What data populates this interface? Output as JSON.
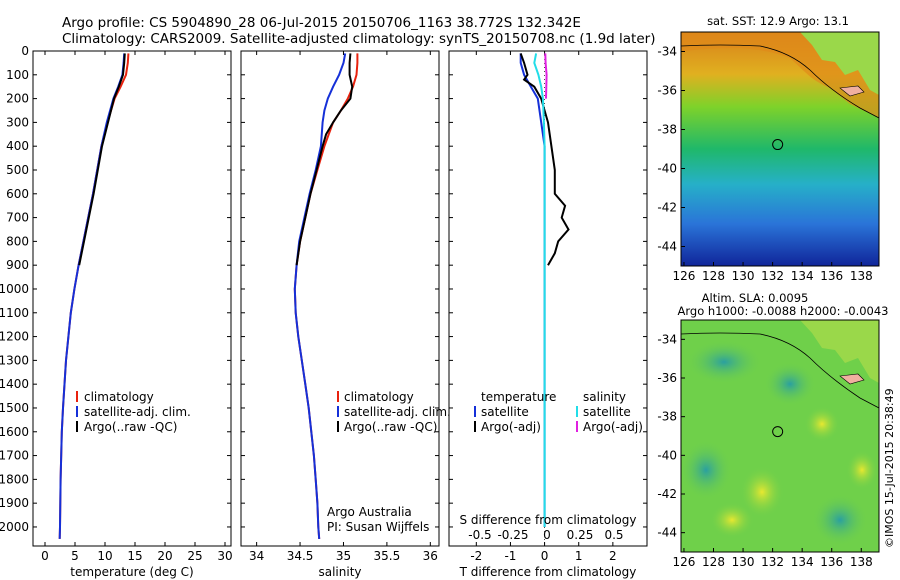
{
  "header": {
    "line1": "Argo profile: CS 5904890_28 06-Jul-2015 20150706_1163 38.772S 132.342E",
    "line2": "Climatology: CARS2009. Satellite-adjusted climatology: synTS_20150708.nc (1.9d later)"
  },
  "credits": {
    "org": "Argo Australia",
    "pi": "PI: Susan Wijffels",
    "stamp": "©IMOS 15-Jul-2015 20:38:49"
  },
  "colors": {
    "climatology": "#e8220e",
    "satellite": "#1530d8",
    "argo": "#000000",
    "sal_satellite": "#22dde8",
    "sal_argo": "#e020e0"
  },
  "legend_labels": {
    "climatology": "climatology",
    "satellite_adj": "satellite-adj. clim.",
    "argo_raw": "Argo(..raw -QC)",
    "temperature": "temperature",
    "salinity": "salinity",
    "satellite": "satellite",
    "argo_adj": "Argo(-adj)"
  },
  "map_labels": {
    "sst": "sat. SST: 12.9 Argo: 13.1",
    "sla": "Altim. SLA: 0.0095",
    "h": "Argo h1000: -0.0088 h2000: -0.0043"
  },
  "chart_data": [
    {
      "type": "line",
      "panel": "temperature",
      "xlabel": "temperature (deg C)",
      "ylabel": "",
      "xlim": [
        -2,
        31
      ],
      "ylim": [
        2080,
        0
      ],
      "xticks": [
        0,
        5,
        10,
        15,
        20,
        25,
        30
      ],
      "yticks": [
        0,
        100,
        200,
        300,
        400,
        500,
        600,
        700,
        800,
        900,
        1000,
        1100,
        1200,
        1300,
        1400,
        1500,
        1600,
        1700,
        1800,
        1900,
        2000
      ],
      "series": [
        {
          "name": "climatology",
          "color": "#e8220e",
          "depth": [
            10,
            50,
            100,
            150,
            200,
            300,
            400,
            500,
            600,
            700,
            800,
            900,
            1000,
            1100,
            1200,
            1300,
            1400,
            1500,
            1600,
            1700,
            1800,
            1900,
            2000,
            2050
          ],
          "values": [
            13.9,
            13.8,
            13.5,
            12.6,
            11.6,
            10.4,
            9.4,
            8.7,
            8.0,
            7.2,
            6.4,
            5.6,
            4.9,
            4.3,
            3.9,
            3.5,
            3.25,
            3.0,
            2.8,
            2.7,
            2.6,
            2.55,
            2.5,
            2.45
          ]
        },
        {
          "name": "satellite-adj. clim.",
          "color": "#1530d8",
          "depth": [
            10,
            50,
            100,
            150,
            200,
            300,
            400,
            500,
            600,
            700,
            800,
            900,
            1000,
            1100,
            1200,
            1300,
            1400,
            1500,
            1600,
            1700,
            1800,
            1900,
            2000,
            2050
          ],
          "values": [
            13.2,
            13.1,
            12.9,
            12.2,
            11.4,
            10.3,
            9.4,
            8.7,
            8.0,
            7.2,
            6.4,
            5.6,
            4.9,
            4.3,
            3.9,
            3.5,
            3.25,
            3.0,
            2.8,
            2.7,
            2.6,
            2.55,
            2.5,
            2.45
          ]
        },
        {
          "name": "Argo(..raw -QC)",
          "color": "#000000",
          "depth": [
            10,
            50,
            100,
            150,
            200,
            300,
            400,
            500,
            600,
            700,
            800,
            900
          ],
          "values": [
            13.3,
            13.2,
            13.0,
            12.3,
            11.5,
            10.5,
            9.5,
            8.8,
            8.1,
            7.3,
            6.5,
            5.7
          ]
        }
      ]
    },
    {
      "type": "line",
      "panel": "salinity",
      "xlabel": "salinity",
      "ylabel": "",
      "xlim": [
        33.82,
        36.1
      ],
      "ylim": [
        2080,
        0
      ],
      "xticks": [
        34,
        34.5,
        35,
        35.5,
        36
      ],
      "series": [
        {
          "name": "climatology",
          "color": "#e8220e",
          "depth": [
            10,
            50,
            100,
            150,
            200,
            250,
            300,
            400,
            500,
            600,
            700,
            800,
            900,
            1000,
            1100,
            1200,
            1300,
            1400,
            1500,
            1600,
            1700,
            1800,
            1900,
            2000,
            2050
          ],
          "values": [
            35.16,
            35.16,
            35.15,
            35.11,
            35.05,
            34.97,
            34.88,
            34.78,
            34.7,
            34.62,
            34.56,
            34.5,
            34.46,
            34.44,
            34.45,
            34.48,
            34.52,
            34.56,
            34.6,
            34.63,
            34.66,
            34.68,
            34.7,
            34.71,
            34.72
          ]
        },
        {
          "name": "satellite-adj. clim.",
          "color": "#1530d8",
          "depth": [
            10,
            50,
            100,
            150,
            200,
            250,
            300,
            400,
            500,
            600,
            700,
            800,
            900,
            1000,
            1100,
            1200,
            1300,
            1400,
            1500,
            1600,
            1700,
            1800,
            1900,
            2000,
            2050
          ],
          "values": [
            35.02,
            35.0,
            34.95,
            34.88,
            34.82,
            34.78,
            34.76,
            34.74,
            34.68,
            34.61,
            34.55,
            34.49,
            34.46,
            34.44,
            34.45,
            34.48,
            34.52,
            34.56,
            34.6,
            34.63,
            34.66,
            34.68,
            34.7,
            34.71,
            34.72
          ]
        },
        {
          "name": "Argo(..raw -QC)",
          "color": "#000000",
          "depth": [
            10,
            50,
            100,
            150,
            200,
            250,
            300,
            350,
            400,
            500,
            600,
            700,
            800,
            900
          ],
          "values": [
            35.08,
            35.07,
            35.07,
            35.1,
            35.08,
            34.97,
            34.88,
            34.8,
            34.76,
            34.69,
            34.62,
            34.56,
            34.5,
            34.46
          ]
        }
      ],
      "annotation": {
        "text1": "Argo Australia",
        "text2": "PI: Susan Wijffels"
      }
    },
    {
      "type": "line",
      "panel": "difference",
      "xlabel": "T difference from climatology",
      "xlabel_top": "S difference from climatology",
      "xlim": [
        -2.8,
        3.0
      ],
      "ylim": [
        2080,
        0
      ],
      "xticks": [
        -2,
        -1,
        0,
        1,
        2
      ],
      "top_ticks": [
        "-0.5",
        "-0.25",
        "0",
        "0.25",
        "0.5"
      ],
      "series": [
        {
          "name": "temperature satellite",
          "color": "#1530d8",
          "depth": [
            10,
            50,
            100,
            150,
            200,
            300,
            400,
            500,
            600,
            700,
            800,
            900,
            1000,
            1200,
            1400,
            1600,
            1800,
            2000
          ],
          "values": [
            -0.7,
            -0.7,
            -0.6,
            -0.4,
            -0.2,
            -0.1,
            0,
            0,
            0,
            0,
            0,
            0,
            0,
            0,
            0,
            0,
            0,
            0
          ]
        },
        {
          "name": "temperature Argo(-adj)",
          "color": "#000000",
          "depth": [
            10,
            50,
            100,
            120,
            150,
            200,
            300,
            400,
            500,
            600,
            650,
            700,
            750,
            800,
            850,
            900
          ],
          "values": [
            -0.7,
            -0.6,
            -0.5,
            -0.6,
            -0.3,
            -0.1,
            0.1,
            0.2,
            0.3,
            0.3,
            0.6,
            0.5,
            0.7,
            0.4,
            0.3,
            0.1
          ]
        },
        {
          "name": "salinity satellite",
          "color": "#22dde8",
          "depth": [
            10,
            50,
            100,
            150,
            200,
            300,
            400,
            500,
            600,
            800,
            1000,
            1200,
            1400,
            1600,
            1800,
            2000
          ],
          "values": [
            -0.25,
            -0.3,
            -0.18,
            -0.1,
            -0.05,
            -0.02,
            0,
            0,
            0,
            0,
            0,
            0,
            0,
            0,
            0,
            0
          ]
        },
        {
          "name": "salinity Argo(-adj)",
          "color": "#e020e0",
          "depth": [
            10,
            50,
            100,
            150,
            200
          ],
          "values": [
            0.02,
            0.03,
            0.06,
            0.05,
            0.04
          ]
        }
      ]
    }
  ],
  "maps": [
    {
      "name": "sst",
      "xticks": [
        126,
        128,
        130,
        132,
        134,
        136,
        138
      ],
      "yticks": [
        -34,
        -36,
        -38,
        -40,
        -42,
        -44
      ],
      "xlim": [
        125.8,
        139.2
      ],
      "ylim": [
        -33,
        -45
      ]
    },
    {
      "name": "sla",
      "xticks": [
        126,
        128,
        130,
        132,
        134,
        136,
        138
      ],
      "yticks": [
        -34,
        -36,
        -38,
        -40,
        -42,
        -44
      ],
      "xlim": [
        125.8,
        139.2
      ],
      "ylim": [
        -33,
        -45
      ]
    }
  ],
  "argo_position": {
    "lat": -38.772,
    "lon": 132.342
  }
}
